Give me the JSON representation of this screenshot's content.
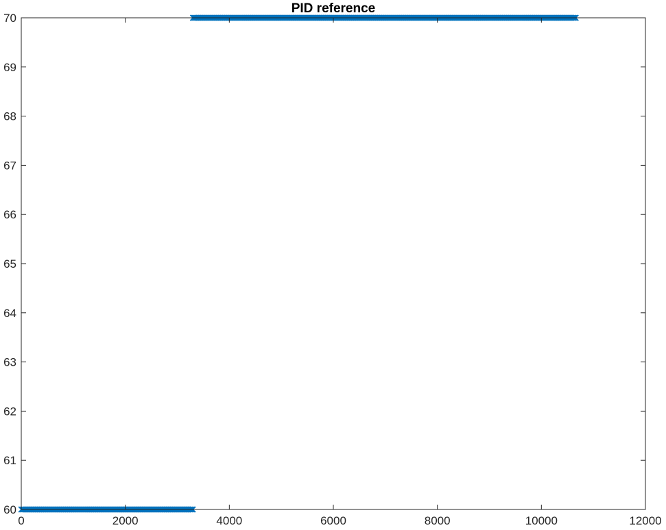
{
  "chart_data": {
    "type": "scatter",
    "title": "PID reference",
    "xlabel": "",
    "ylabel": "",
    "xlim": [
      0,
      12000
    ],
    "ylim": [
      60,
      70
    ],
    "xticks": [
      0,
      2000,
      4000,
      6000,
      8000,
      10000,
      12000
    ],
    "yticks": [
      60,
      61,
      62,
      63,
      64,
      65,
      66,
      67,
      68,
      69,
      70
    ],
    "xtick_labels": [
      "0",
      "2000",
      "4000",
      "6000",
      "8000",
      "10000",
      "12000"
    ],
    "ytick_labels": [
      "60",
      "61",
      "62",
      "63",
      "64",
      "65",
      "66",
      "67",
      "68",
      "69",
      "70"
    ],
    "grid": false,
    "marker": "x",
    "color": "#0072BD",
    "series": [
      {
        "segments": [
          {
            "x_start": 0,
            "x_end": 3300,
            "x_step": 20,
            "y": 60
          },
          {
            "x_start": 3300,
            "x_end": 10660,
            "x_step": 20,
            "y": 70
          }
        ]
      }
    ]
  }
}
